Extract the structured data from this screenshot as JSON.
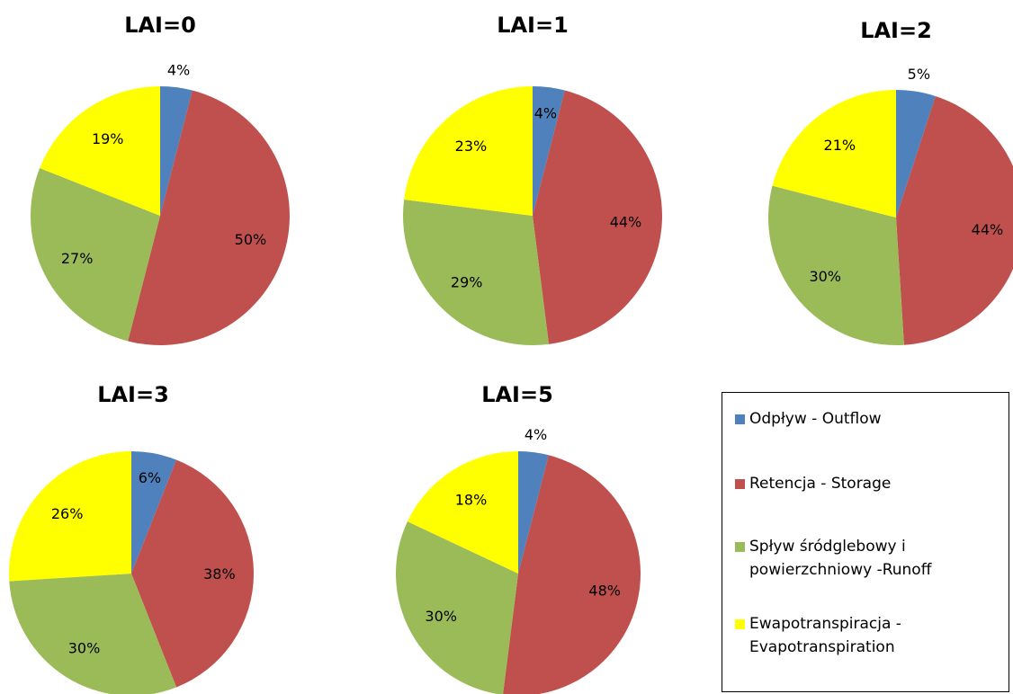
{
  "colors": {
    "outflow": "#4f81bd",
    "storage": "#c0504d",
    "runoff": "#9bbb59",
    "evapotranspiration": "#ffff00"
  },
  "legend": {
    "items": [
      {
        "key": "outflow",
        "label": "Odpływ - Outflow"
      },
      {
        "key": "storage",
        "label": "Retencja  - Storage"
      },
      {
        "key": "runoff",
        "label": "Spływ śródglebowy i powierzchniowy -Runoff"
      },
      {
        "key": "evapotranspiration",
        "label": "Ewapotranspiracja - Evapotranspiration"
      }
    ]
  },
  "chart_data": [
    {
      "type": "pie",
      "title": "LAI=0",
      "categories": [
        "Odpływ - Outflow",
        "Retencja  - Storage",
        "Spływ śródglebowy i powierzchniowy -Runoff",
        "Ewapotranspiracja - Evapotranspiration"
      ],
      "values": [
        4,
        50,
        27,
        19
      ],
      "labels": [
        "4%",
        "50%",
        "27%",
        "19%"
      ]
    },
    {
      "type": "pie",
      "title": "LAI=1",
      "categories": [
        "Odpływ - Outflow",
        "Retencja  - Storage",
        "Spływ śródglebowy i powierzchniowy -Runoff",
        "Ewapotranspiracja - Evapotranspiration"
      ],
      "values": [
        4,
        44,
        29,
        23
      ],
      "labels": [
        "4%",
        "44%",
        "29%",
        "23%"
      ]
    },
    {
      "type": "pie",
      "title": "LAI=2",
      "categories": [
        "Odpływ - Outflow",
        "Retencja  - Storage",
        "Spływ śródglebowy i powierzchniowy -Runoff",
        "Ewapotranspiracja - Evapotranspiration"
      ],
      "values": [
        5,
        44,
        30,
        21
      ],
      "labels": [
        "5%",
        "44%",
        "30%",
        "21%"
      ]
    },
    {
      "type": "pie",
      "title": "LAI=3",
      "categories": [
        "Odpływ - Outflow",
        "Retencja  - Storage",
        "Spływ śródglebowy i powierzchniowy -Runoff",
        "Ewapotranspiracja - Evapotranspiration"
      ],
      "values": [
        6,
        38,
        30,
        26
      ],
      "labels": [
        "6%",
        "38%",
        "30%",
        "26%"
      ]
    },
    {
      "type": "pie",
      "title": "LAI=5",
      "categories": [
        "Odpływ - Outflow",
        "Retencja  - Storage",
        "Spływ śródglebowy i powierzchniowy -Runoff",
        "Ewapotranspiracja - Evapotranspiration"
      ],
      "values": [
        4,
        48,
        30,
        18
      ],
      "labels": [
        "4%",
        "48%",
        "30%",
        "18%"
      ]
    }
  ]
}
